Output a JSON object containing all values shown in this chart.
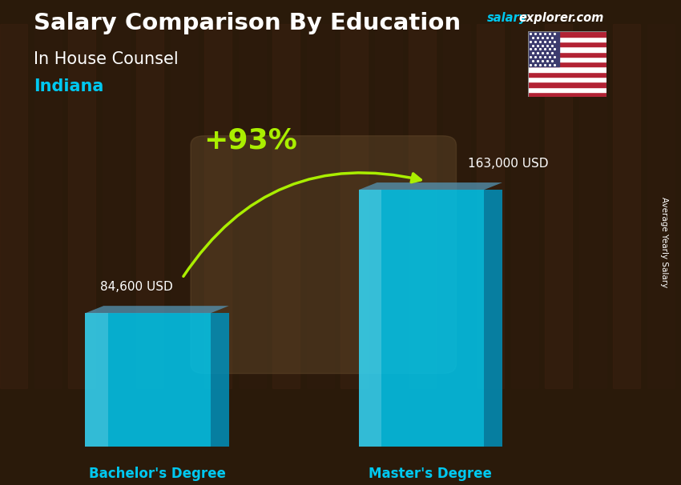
{
  "title_main": "Salary Comparison By Education",
  "title_sub1": "In House Counsel",
  "title_sub2": "Indiana",
  "site_salary": "salary",
  "site_rest": "explorer.com",
  "categories": [
    "Bachelor's Degree",
    "Master's Degree"
  ],
  "values": [
    84600,
    163000
  ],
  "value_labels": [
    "84,600 USD",
    "163,000 USD"
  ],
  "pct_change": "+93%",
  "bar_color_main": "#00C8F0",
  "bar_color_side": "#0090BB",
  "bar_alpha": 0.82,
  "ylabel_rotated": "Average Yearly Salary",
  "bg_color": "#3a2a1a",
  "title_color": "#ffffff",
  "sub1_color": "#ffffff",
  "sub2_color": "#00C8F0",
  "label_color": "#ffffff",
  "xtick_color": "#00C8F0",
  "pct_color": "#AAEE00",
  "arrow_color": "#AAEE00",
  "site_salary_color": "#00C8F0",
  "site_rest_color": "#ffffff"
}
